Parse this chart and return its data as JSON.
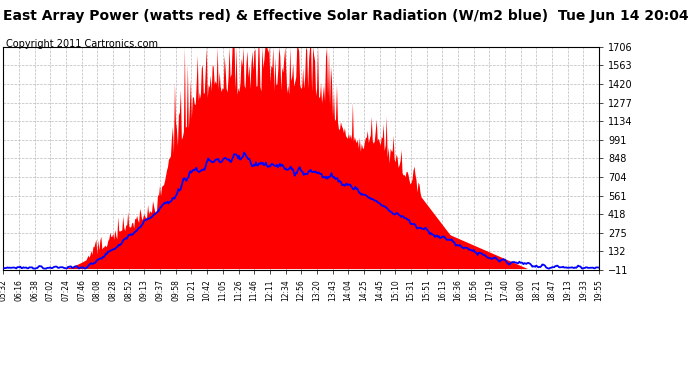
{
  "title": "East Array Power (watts red) & Effective Solar Radiation (W/m2 blue)  Tue Jun 14 20:04",
  "copyright": "Copyright 2011 Cartronics.com",
  "y_ticks": [
    1706.5,
    1563.3,
    1420.2,
    1277.1,
    1133.9,
    990.8,
    847.7,
    704.5,
    561.4,
    418.3,
    275.1,
    132.0,
    -11.1
  ],
  "x_labels": [
    "05:32",
    "06:16",
    "06:38",
    "07:02",
    "07:24",
    "07:46",
    "08:08",
    "08:28",
    "08:52",
    "09:13",
    "09:37",
    "09:58",
    "10:21",
    "10:42",
    "11:05",
    "11:26",
    "11:46",
    "12:11",
    "12:34",
    "12:56",
    "13:20",
    "13:43",
    "14:04",
    "14:25",
    "14:45",
    "15:10",
    "15:31",
    "15:51",
    "16:13",
    "16:36",
    "16:56",
    "17:19",
    "17:40",
    "18:00",
    "18:21",
    "18:47",
    "19:13",
    "19:33",
    "19:55"
  ],
  "ymin": -11.1,
  "ymax": 1706.5,
  "bg_color": "#ffffff",
  "fill_color": "#ff0000",
  "line_color": "#0000ff",
  "grid_color": "#bbbbbb",
  "title_fontsize": 10,
  "copyright_fontsize": 7
}
